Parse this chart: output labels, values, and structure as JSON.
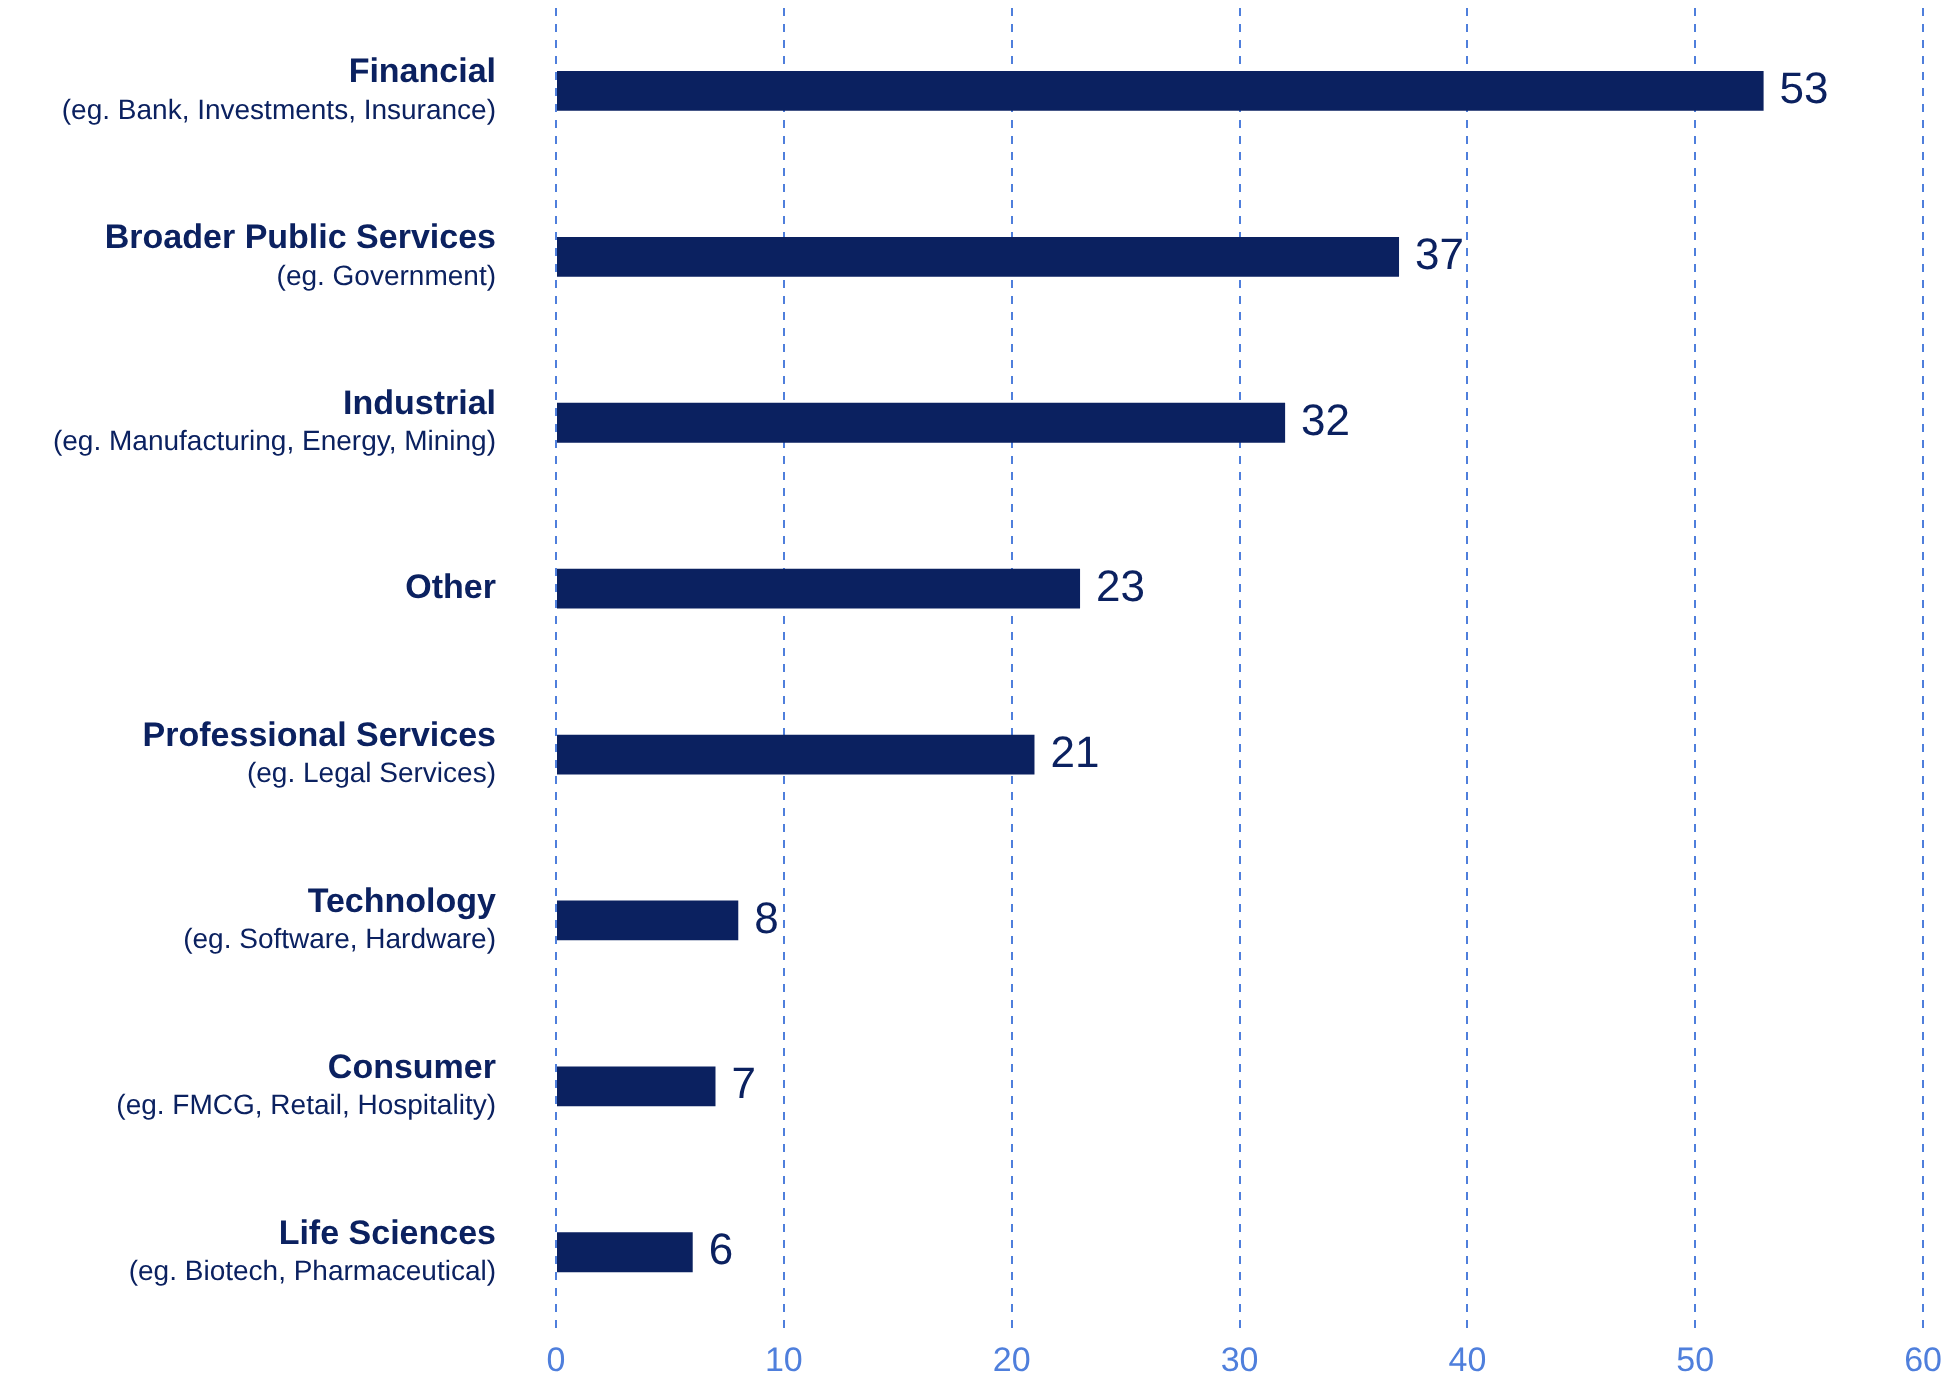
{
  "chart_data": {
    "type": "bar",
    "orientation": "horizontal",
    "categories": [
      "Financial\n(eg. Bank, Investments, Insurance)",
      "Broader Public Services\n(eg. Government)",
      "Industrial\n(eg. Manufacturing, Energy, Mining)",
      "Other",
      "Professional Services\n(eg. Legal Services)",
      "Technology\n(eg. Software, Hardware)",
      "Consumer\n(eg. FMCG, Retail, Hospitality)",
      "Life Sciences\n(eg. Biotech, Pharmaceutical)"
    ],
    "values": [
      53,
      37,
      32,
      23,
      21,
      8,
      7,
      6
    ],
    "color": "#0b2160",
    "xlim": [
      0,
      60
    ],
    "xticks": [
      0,
      10,
      20,
      30,
      40,
      50,
      60
    ],
    "grid": "x",
    "data_labels": true
  }
}
